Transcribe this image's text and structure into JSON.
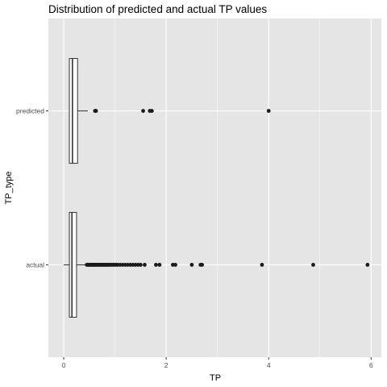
{
  "chart_data": {
    "type": "boxplot",
    "orientation": "horizontal",
    "title": "Distribution of predicted and actual TP values",
    "xlabel": "TP",
    "ylabel": "TP_type",
    "xlim": [
      -0.3,
      6.2
    ],
    "x_ticks": [
      0,
      2,
      4,
      6
    ],
    "x_tick_labels": [
      "0",
      "2",
      "4",
      "6"
    ],
    "categories": [
      "actual",
      "predicted"
    ],
    "grid": true,
    "panel_background": "#e5e5e5",
    "grid_color": "#ffffff",
    "box_fill": "#ffffff",
    "box_stroke": "#333333",
    "outlier_color": "#1a1a1a",
    "boxes": [
      {
        "category": "actual",
        "whisker_low": 0.0,
        "q1": 0.11,
        "median": 0.16,
        "q3": 0.25,
        "whisker_high": 0.44,
        "outliers": [
          0.45,
          0.47,
          0.49,
          0.5,
          0.52,
          0.54,
          0.55,
          0.57,
          0.59,
          0.6,
          0.62,
          0.64,
          0.66,
          0.68,
          0.7,
          0.72,
          0.74,
          0.76,
          0.78,
          0.8,
          0.82,
          0.84,
          0.86,
          0.88,
          0.9,
          0.93,
          0.96,
          0.99,
          1.02,
          1.05,
          1.1,
          1.15,
          1.2,
          1.25,
          1.3,
          1.35,
          1.4,
          1.45,
          1.5,
          1.58,
          1.8,
          1.87,
          2.13,
          2.18,
          2.5,
          2.67,
          2.7,
          3.87,
          4.87,
          5.93
        ]
      },
      {
        "category": "predicted",
        "whisker_low": 0.11,
        "q1": 0.11,
        "median": 0.17,
        "q3": 0.27,
        "whisker_high": 0.47,
        "outliers": [
          0.61,
          0.63,
          1.55,
          1.68,
          1.72,
          4.0
        ]
      }
    ]
  }
}
